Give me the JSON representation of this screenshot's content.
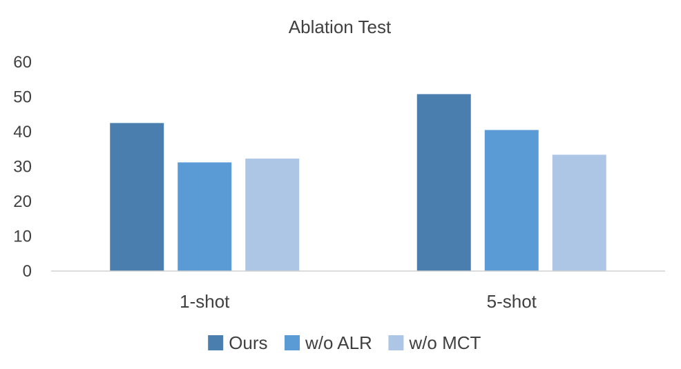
{
  "chart_data": {
    "type": "bar",
    "title": "Ablation Test",
    "categories": [
      "1-shot",
      "5-shot"
    ],
    "series": [
      {
        "name": "Ours",
        "values": [
          42.5,
          50.8
        ],
        "color": "#4A7EAF"
      },
      {
        "name": "w/o ALR",
        "values": [
          31.2,
          40.5
        ],
        "color": "#5B9BD5"
      },
      {
        "name": "w/o MCT",
        "values": [
          32.3,
          33.4
        ],
        "color": "#ADC6E5"
      }
    ],
    "ylim": [
      0,
      60
    ],
    "yticks": [
      0,
      10,
      20,
      30,
      40,
      50,
      60
    ],
    "grid": false,
    "legend_position": "bottom"
  }
}
